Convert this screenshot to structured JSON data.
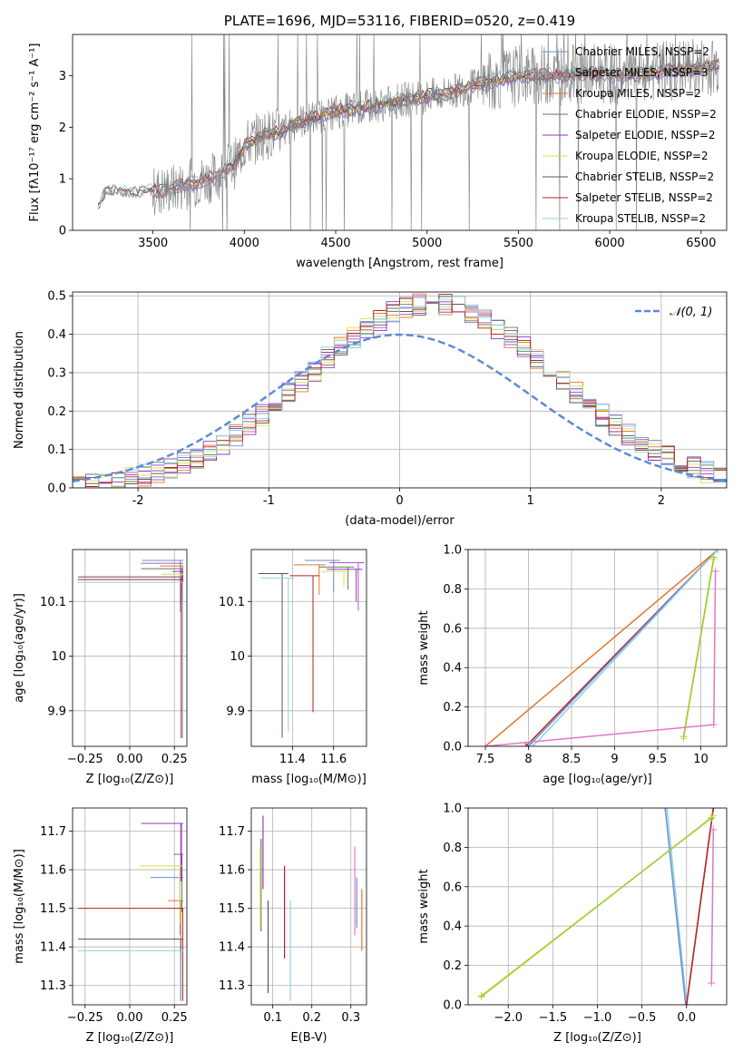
{
  "chart_data": [
    {
      "id": "spectrum",
      "type": "line",
      "title": "PLATE=1696, MJD=53116, FIBERID=0520, z=0.419",
      "xlabel": "wavelength [Angstrom, rest frame]",
      "ylabel": "Flux [fλ10⁻¹⁷ erg cm⁻² s⁻¹ A⁻¹]",
      "xlim": [
        3060,
        6640
      ],
      "ylim": [
        0,
        3.8
      ],
      "xticks": [
        3500,
        4000,
        4500,
        5000,
        5500,
        6000,
        6500
      ],
      "yticks": [
        0,
        1,
        2,
        3
      ],
      "grid": false,
      "legend_position": "top-right",
      "data_color": "#808080",
      "continuum_x": [
        3200,
        3250,
        3400,
        3500,
        3600,
        3700,
        3800,
        3850,
        3900,
        3950,
        4000,
        4100,
        4200,
        4300,
        4500,
        4700,
        4900,
        5100,
        5300,
        5500,
        5700,
        5900,
        6100,
        6300,
        6500,
        6600
      ],
      "continuum_y": [
        0.45,
        0.75,
        0.7,
        0.75,
        0.8,
        0.9,
        1.0,
        1.05,
        1.2,
        1.3,
        1.65,
        1.85,
        1.9,
        2.1,
        2.3,
        2.4,
        2.55,
        2.65,
        2.85,
        3.0,
        3.0,
        3.05,
        3.0,
        3.1,
        3.15,
        3.2
      ],
      "series": [
        {
          "name": "Chabrier MILES, N_SSP=2",
          "color": "#6a8fd8",
          "start": 3500
        },
        {
          "name": "Salpeter MILES, N_SSP=3",
          "color": "#b057c9",
          "start": 3500
        },
        {
          "name": "Kroupa MILES, N_SSP=2",
          "color": "#e0782a",
          "start": 3500
        },
        {
          "name": "Chabrier ELODIE, N_SSP=2",
          "color": "#5a7d5a",
          "start": 3900
        },
        {
          "name": "Salpeter ELODIE, N_SSP=2",
          "color": "#9b30c0",
          "start": 3900
        },
        {
          "name": "Kroupa ELODIE, N_SSP=2",
          "color": "#d8df50",
          "start": 3900
        },
        {
          "name": "Chabrier STELIB, N_SSP=2",
          "color": "#555555",
          "start": 3200
        },
        {
          "name": "Salpeter STELIB, N_SSP=2",
          "color": "#b22222",
          "start": 3200
        },
        {
          "name": "Kroupa STELIB, N_SSP=2",
          "color": "#8fd0e0",
          "start": 3200
        }
      ]
    },
    {
      "id": "residuals",
      "type": "histogram",
      "xlabel": "(data-model)/error",
      "ylabel": "Normed distribution",
      "xlim": [
        -2.5,
        2.5
      ],
      "ylim": [
        0,
        0.51
      ],
      "xticks": [
        -2,
        -1,
        0,
        1,
        2
      ],
      "yticks": [
        0.0,
        0.1,
        0.2,
        0.3,
        0.4,
        0.5
      ],
      "grid": true,
      "legend": "𝒩(0, 1)",
      "legend_position": "top-right",
      "normal_curve": {
        "mean": 0,
        "sigma": 1,
        "color": "#5b8bd6"
      },
      "bin_centers": [
        -2.4,
        -2.2,
        -2.0,
        -1.8,
        -1.6,
        -1.4,
        -1.2,
        -1.0,
        -0.8,
        -0.6,
        -0.4,
        -0.2,
        0.0,
        0.2,
        0.4,
        0.6,
        0.8,
        1.0,
        1.2,
        1.4,
        1.6,
        1.8,
        2.0,
        2.2,
        2.4
      ],
      "approx_density": [
        0.01,
        0.025,
        0.04,
        0.07,
        0.11,
        0.15,
        0.19,
        0.24,
        0.27,
        0.3,
        0.33,
        0.37,
        0.39,
        0.42,
        0.43,
        0.41,
        0.36,
        0.3,
        0.23,
        0.17,
        0.12,
        0.08,
        0.06,
        0.04,
        0.025
      ]
    },
    {
      "id": "age_vs_Z",
      "type": "scatter",
      "xlabel": "Z [log₁₀(Z/Z⊙)]",
      "ylabel": "age  [log₁₀(age/yr)]",
      "xlim": [
        -0.32,
        0.32
      ],
      "ylim": [
        9.835,
        10.195
      ],
      "xticks": [
        -0.25,
        0.0,
        0.25
      ],
      "xtick_labels": [
        "−0.25",
        "0.00",
        "0.25"
      ],
      "yticks": [
        9.9,
        10.0,
        10.1
      ],
      "grid": true,
      "note": "error-bar segments per model"
    },
    {
      "id": "age_vs_mass",
      "type": "scatter",
      "xlabel": "mass [log₁₀(M/M⊙)]",
      "ylabel": "",
      "xlim": [
        11.2,
        11.76
      ],
      "ylim": [
        9.835,
        10.195
      ],
      "xticks": [
        11.4,
        11.6
      ],
      "yticks": [
        9.9,
        10.0,
        10.1
      ],
      "grid": true
    },
    {
      "id": "mass_weight_vs_age",
      "type": "line",
      "xlabel": "age  [log₁₀(age/yr)]",
      "ylabel": "mass weight",
      "xlim": [
        7.3,
        10.3
      ],
      "ylim": [
        0,
        1
      ],
      "xticks": [
        7.5,
        8.0,
        8.5,
        9.0,
        9.5,
        10.0
      ],
      "yticks": [
        0.0,
        0.2,
        0.4,
        0.6,
        0.8,
        1.0
      ],
      "grid": true,
      "series": [
        {
          "color": "#e0782a",
          "x": [
            7.5,
            10.2
          ],
          "y": [
            0.0,
            1.0
          ]
        },
        {
          "color": "#b22222",
          "x": [
            7.97,
            10.2
          ],
          "y": [
            0.0,
            1.0
          ]
        },
        {
          "color": "#6a8fd8",
          "x": [
            8.0,
            10.2
          ],
          "y": [
            0.0,
            1.0
          ]
        },
        {
          "color": "#8fd0e0",
          "x": [
            8.05,
            10.2
          ],
          "y": [
            0.0,
            1.0
          ]
        },
        {
          "color": "#d8df50",
          "x": [
            9.8,
            10.15
          ],
          "y": [
            0.04,
            0.95
          ]
        },
        {
          "color": "#9acd32",
          "x": [
            9.8,
            10.15
          ],
          "y": [
            0.05,
            0.96
          ]
        },
        {
          "color": "#e377c2",
          "x": [
            7.5,
            10.15,
            10.17
          ],
          "y": [
            0.0,
            0.11,
            0.89
          ]
        }
      ]
    },
    {
      "id": "mass_vs_Z",
      "type": "scatter",
      "xlabel": "Z [log₁₀(Z/Z⊙)]",
      "ylabel": "mass [log₁₀(M/M⊙)]",
      "xlim": [
        -0.32,
        0.32
      ],
      "ylim": [
        11.25,
        11.76
      ],
      "xticks": [
        -0.25,
        0.0,
        0.25
      ],
      "xtick_labels": [
        "−0.25",
        "0.00",
        "0.25"
      ],
      "yticks": [
        11.3,
        11.4,
        11.5,
        11.6,
        11.7
      ],
      "grid": true
    },
    {
      "id": "mass_vs_ebv",
      "type": "scatter",
      "xlabel": "E(B-V)",
      "ylabel": "",
      "xlim": [
        0.045,
        0.34
      ],
      "ylim": [
        11.25,
        11.76
      ],
      "xticks": [
        0.1,
        0.2,
        0.3
      ],
      "yticks": [
        11.3,
        11.4,
        11.5,
        11.6,
        11.7
      ],
      "grid": true,
      "points": [
        {
          "x": 0.07,
          "y_low": 11.44,
          "y_high": 11.68,
          "color": "#5a7d5a"
        },
        {
          "x": 0.075,
          "y_low": 11.55,
          "y_high": 11.74,
          "color": "#9b30c0"
        },
        {
          "x": 0.068,
          "y_low": 11.45,
          "y_high": 11.66,
          "color": "#d8df50"
        },
        {
          "x": 0.088,
          "y_low": 11.28,
          "y_high": 11.52,
          "color": "#555555"
        },
        {
          "x": 0.13,
          "y_low": 11.37,
          "y_high": 11.61,
          "color": "#b22222"
        },
        {
          "x": 0.145,
          "y_low": 11.26,
          "y_high": 11.52,
          "color": "#8fd0e0"
        },
        {
          "x": 0.31,
          "y_low": 11.43,
          "y_high": 11.66,
          "color": "#e377c2"
        },
        {
          "x": 0.315,
          "y_low": 11.45,
          "y_high": 11.58,
          "color": "#6a8fd8"
        },
        {
          "x": 0.328,
          "y_low": 11.39,
          "y_high": 11.55,
          "color": "#e0782a"
        }
      ]
    },
    {
      "id": "mass_weight_vs_Z",
      "type": "line",
      "xlabel": "Z [log₁₀(Z/Z⊙)]",
      "ylabel": "mass weight",
      "xlim": [
        -2.45,
        0.45
      ],
      "ylim": [
        0,
        1
      ],
      "xticks": [
        -2.0,
        -1.5,
        -1.0,
        -0.5,
        0.0
      ],
      "xtick_labels": [
        "−2.0",
        "−1.5",
        "−1.0",
        "−0.5",
        "0.0"
      ],
      "yticks": [
        0.0,
        0.2,
        0.4,
        0.6,
        0.8,
        1.0
      ],
      "grid": true,
      "series": [
        {
          "color": "#8fd0e0",
          "x": [
            -0.22,
            0.0
          ],
          "y": [
            1.0,
            0.0
          ]
        },
        {
          "color": "#6a8fd8",
          "x": [
            -0.24,
            -0.01
          ],
          "y": [
            1.0,
            0.0
          ]
        },
        {
          "color": "#e0782a",
          "x": [
            0.0,
            0.3
          ],
          "y": [
            0.0,
            1.0
          ]
        },
        {
          "color": "#b22222",
          "x": [
            0.0,
            0.3
          ],
          "y": [
            0.0,
            1.0
          ]
        },
        {
          "color": "#d8df50",
          "x": [
            -2.3,
            0.3
          ],
          "y": [
            0.04,
            0.96
          ]
        },
        {
          "color": "#9acd32",
          "x": [
            -2.3,
            0.28
          ],
          "y": [
            0.045,
            0.95
          ]
        },
        {
          "color": "#e377c2",
          "x": [
            0.28,
            0.3
          ],
          "y": [
            0.11,
            0.89
          ]
        }
      ]
    }
  ]
}
